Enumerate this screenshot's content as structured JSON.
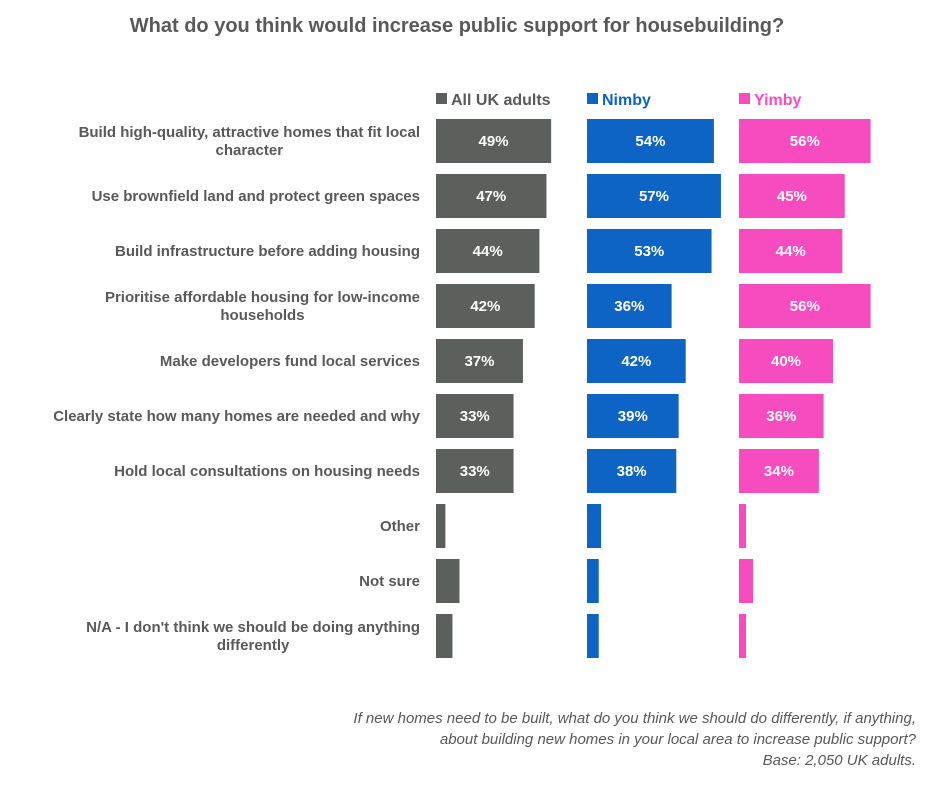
{
  "chart_data": {
    "type": "bar",
    "orientation": "horizontal",
    "title": "What do you think would increase public support for housebuilding?",
    "categories": [
      "Build high-quality, attractive homes that fit local character",
      "Use brownfield land and protect green spaces",
      "Build infrastructure before adding housing",
      "Prioritise affordable housing for low-income households",
      "Make developers fund local services",
      "Clearly state how many homes are needed and why",
      "Hold local consultations on housing needs",
      "Other",
      "Not sure",
      "N/A - I don't think we should be doing anything differently"
    ],
    "series": [
      {
        "name": "All UK adults",
        "color": "#5B605D",
        "values": [
          49,
          47,
          44,
          42,
          37,
          33,
          33,
          4,
          10,
          7
        ],
        "labels": [
          "49%",
          "47%",
          "44%",
          "42%",
          "37%",
          "33%",
          "33%",
          "",
          "",
          ""
        ]
      },
      {
        "name": "Nimby",
        "color": "#0E64C4",
        "values": [
          54,
          57,
          53,
          36,
          42,
          39,
          38,
          6,
          5,
          5
        ],
        "labels": [
          "54%",
          "57%",
          "53%",
          "36%",
          "42%",
          "39%",
          "38%",
          "",
          "",
          ""
        ]
      },
      {
        "name": "Yimby",
        "color": "#F74CBF",
        "values": [
          56,
          45,
          44,
          56,
          40,
          36,
          34,
          3,
          6,
          3
        ],
        "labels": [
          "56%",
          "45%",
          "44%",
          "56%",
          "40%",
          "36%",
          "34%",
          "",
          "",
          ""
        ]
      }
    ],
    "legend_position": "top",
    "grid": false,
    "footnote": [
      "If new homes need to be built, what do you think we should do differently, if anything,",
      "about building new homes in your local area to increase public support?",
      "Base: 2,050 UK adults."
    ]
  }
}
